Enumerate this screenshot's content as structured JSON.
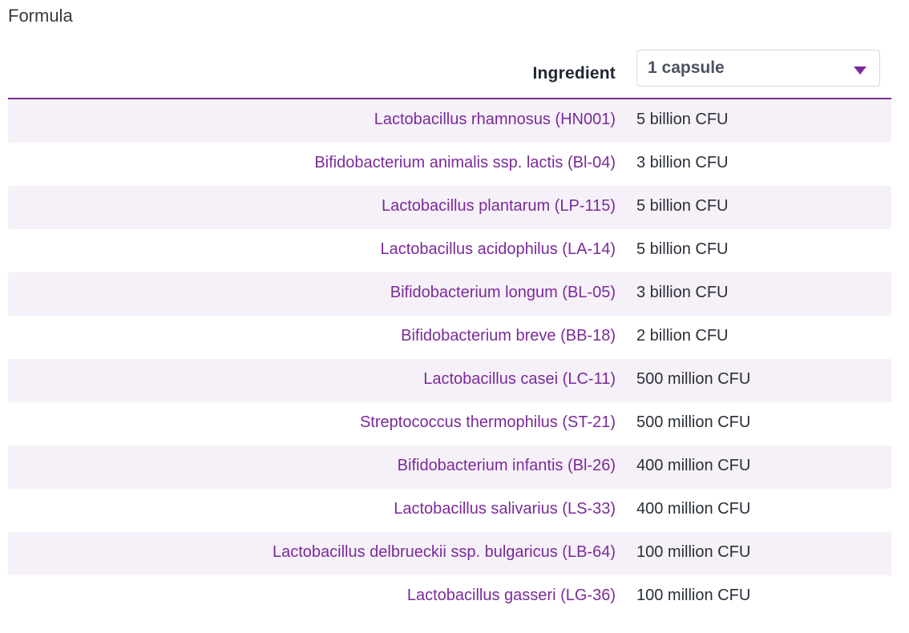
{
  "section": {
    "title": "Formula"
  },
  "header": {
    "ingredient_label": "Ingredient",
    "serving_select": {
      "selected": "1 capsule"
    }
  },
  "colors": {
    "accent": "#7b2a9a",
    "row_stripe": "#f6f1f8",
    "text_dark": "#2a2f38"
  },
  "rows": [
    {
      "ingredient": "Lactobacillus rhamnosus (HN001)",
      "amount": "5 billion CFU"
    },
    {
      "ingredient": "Bifidobacterium animalis ssp. lactis (Bl-04)",
      "amount": "3 billion CFU"
    },
    {
      "ingredient": "Lactobacillus plantarum (LP-115)",
      "amount": "5 billion CFU"
    },
    {
      "ingredient": "Lactobacillus acidophilus (LA-14)",
      "amount": "5 billion CFU"
    },
    {
      "ingredient": "Bifidobacterium longum (BL-05)",
      "amount": "3 billion CFU"
    },
    {
      "ingredient": "Bifidobacterium breve (BB-18)",
      "amount": "2 billion CFU"
    },
    {
      "ingredient": "Lactobacillus casei (LC-11)",
      "amount": "500 million CFU"
    },
    {
      "ingredient": "Streptococcus thermophilus (ST-21)",
      "amount": "500 million CFU"
    },
    {
      "ingredient": "Bifidobacterium infantis (Bl-26)",
      "amount": "400 million CFU"
    },
    {
      "ingredient": "Lactobacillus salivarius (LS-33)",
      "amount": "400 million CFU"
    },
    {
      "ingredient": "Lactobacillus delbrueckii ssp. bulgaricus (LB-64)",
      "amount": "100 million CFU"
    },
    {
      "ingredient": "Lactobacillus gasseri (LG-36)",
      "amount": "100 million CFU"
    }
  ]
}
